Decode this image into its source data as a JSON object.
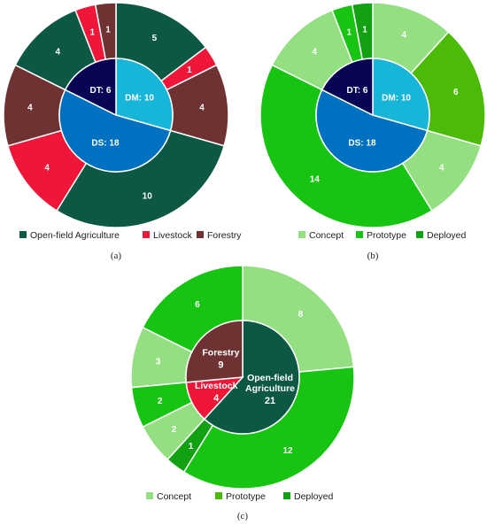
{
  "chart_data": [
    {
      "type": "pie",
      "panel_label": "(a)",
      "inner": [
        {
          "label": "DM: 10",
          "value": 10,
          "color": "#17b6d9"
        },
        {
          "label": "DS: 18",
          "value": 18,
          "color": "#0070c0"
        },
        {
          "label": "DT: 6",
          "value": 6,
          "color": "#080555"
        }
      ],
      "outer": [
        {
          "label": "5",
          "value": 5,
          "color": "#0c5845"
        },
        {
          "label": "1",
          "value": 1,
          "color": "#f01638"
        },
        {
          "label": "4",
          "value": 4,
          "color": "#6e3233"
        },
        {
          "label": "10",
          "value": 10,
          "color": "#0c5845"
        },
        {
          "label": "4",
          "value": 4,
          "color": "#f01638"
        },
        {
          "label": "4",
          "value": 4,
          "color": "#6e3233"
        },
        {
          "label": "4",
          "value": 4,
          "color": "#0c5845"
        },
        {
          "label": "1",
          "value": 1,
          "color": "#f01638"
        },
        {
          "label": "1",
          "value": 1,
          "color": "#6e3233"
        }
      ],
      "legend": [
        {
          "label": "Open-field Agriculture",
          "color": "#0c5845"
        },
        {
          "label": "Livestock",
          "color": "#f01638"
        },
        {
          "label": "Forestry",
          "color": "#6e3233"
        }
      ]
    },
    {
      "type": "pie",
      "panel_label": "(b)",
      "inner": [
        {
          "label": "DM: 10",
          "value": 10,
          "color": "#17b6d9"
        },
        {
          "label": "DS: 18",
          "value": 18,
          "color": "#0070c0"
        },
        {
          "label": "DT: 6",
          "value": 6,
          "color": "#080555"
        }
      ],
      "outer": [
        {
          "label": "4",
          "value": 4,
          "color": "#95df83"
        },
        {
          "label": "6",
          "value": 6,
          "color": "#4cbb07"
        },
        {
          "label": "4",
          "value": 4,
          "color": "#95df83"
        },
        {
          "label": "14",
          "value": 14,
          "color": "#18c412"
        },
        {
          "label": "4",
          "value": 4,
          "color": "#95df83"
        },
        {
          "label": "1",
          "value": 1,
          "color": "#18c412"
        },
        {
          "label": "1",
          "value": 1,
          "color": "#12a112"
        }
      ],
      "legend": [
        {
          "label": "Concept",
          "color": "#95df83"
        },
        {
          "label": "Prototype",
          "color": "#18c412"
        },
        {
          "label": "Deployed",
          "color": "#12a112"
        }
      ]
    },
    {
      "type": "pie",
      "panel_label": "(c)",
      "inner": [
        {
          "label": "Open-field Agriculture",
          "value_label": "21",
          "value": 21,
          "color": "#0c5845"
        },
        {
          "label": "Livestock",
          "value_label": "4",
          "value": 4,
          "color": "#f01638"
        },
        {
          "label": "Forestry",
          "value_label": "9",
          "value": 9,
          "color": "#6e3233"
        }
      ],
      "outer": [
        {
          "label": "8",
          "value": 8,
          "color": "#95df83"
        },
        {
          "label": "12",
          "value": 12,
          "color": "#18c412"
        },
        {
          "label": "1",
          "value": 1,
          "color": "#12a112"
        },
        {
          "label": "2",
          "value": 2,
          "color": "#95df83"
        },
        {
          "label": "2",
          "value": 2,
          "color": "#18c412"
        },
        {
          "label": "3",
          "value": 3,
          "color": "#95df83"
        },
        {
          "label": "6",
          "value": 6,
          "color": "#18c412"
        }
      ],
      "legend": [
        {
          "label": "Concept",
          "color": "#95df83"
        },
        {
          "label": "Prototype",
          "color": "#4cbb07"
        },
        {
          "label": "Deployed",
          "color": "#12a112"
        }
      ]
    }
  ]
}
